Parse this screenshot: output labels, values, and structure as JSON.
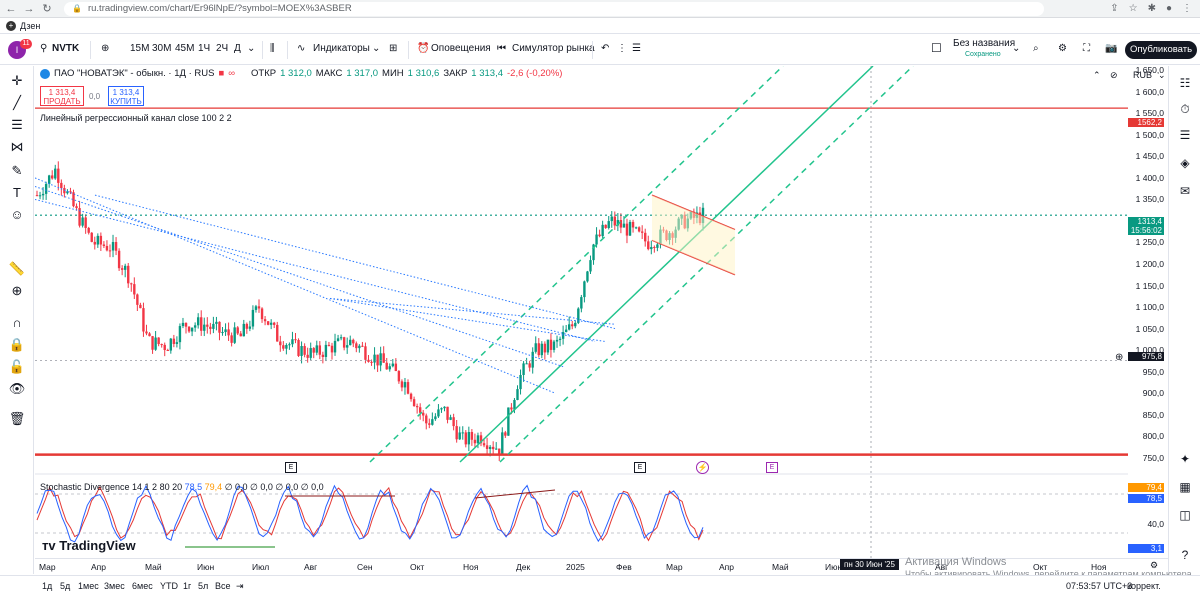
{
  "browser": {
    "url": "ru.tradingview.com/chart/Er96lNpE/?symbol=MOEX%3ASBER",
    "bookmark_label": "Дзен"
  },
  "toolbar": {
    "avatar_badge": "11",
    "symbol": "NVTK",
    "intervals": [
      "15М",
      "30М",
      "45М",
      "1Ч",
      "2Ч",
      "Д"
    ],
    "indicators_label": "Индикаторы",
    "alerts_label": "Оповещения",
    "simulator_label": "Симулятор рынка",
    "layout_name": "Без названия",
    "layout_status": "Сохранено",
    "publish_label": "Опубликовать"
  },
  "legend": {
    "title": "ПАО \"НОВАТЭК\" - обыкн. · 1Д · RUS",
    "open_key": "ОТКР",
    "open_val": "1 312,0",
    "high_key": "МАКС",
    "high_val": "1 317,0",
    "low_key": "МИН",
    "low_val": "1 310,6",
    "close_key": "ЗАКР",
    "close_val": "1 313,4",
    "change": "-2,6 (-0,20%)",
    "sell_price": "1 313,4",
    "sell_label": "ПРОДАТЬ",
    "spread": "0,0",
    "buy_price": "1 313,4",
    "buy_label": "КУПИТЬ",
    "regression_label": "Линейный регрессионный канал close 100 2 2",
    "stoch_label": "Stochastic Divergence 14 1 2 80 20",
    "stoch_k": "78,5",
    "stoch_d": "79,4",
    "stoch_rest": "∅ 0,0 ∅ 0,0 ∅ 0,0 ∅ 0,0"
  },
  "price_axis": {
    "currency": "RUB",
    "ticks": [
      "1 650,0",
      "1 600,0",
      "1 550,0",
      "1 500,0",
      "1 450,0",
      "1 400,0",
      "1 350,0",
      "1 300,0",
      "1 250,0",
      "1 200,0",
      "1 150,0",
      "1 100,0",
      "1 050,0",
      "1 000,0",
      "950,0",
      "900,0",
      "850,0",
      "800,0",
      "750,0"
    ],
    "tag_resistance": "1562,2",
    "tag_last": "1313,4",
    "tag_countdown": "15:56:02",
    "tag_cross": "975,8",
    "osc_ticks": [
      "40,0"
    ],
    "osc_tag_d": "79,4",
    "osc_tag_k": "78,5",
    "osc_tag_low": "3,1"
  },
  "time_axis": {
    "labels": [
      "Мар",
      "Апр",
      "Май",
      "Июн",
      "Июл",
      "Авг",
      "Сен",
      "Окт",
      "Ноя",
      "Дек",
      "2025",
      "Фев",
      "Мар",
      "Апр",
      "Май",
      "Июн",
      "Авг",
      "Окт",
      "Ноя"
    ],
    "crosshair": "пн 30 Июн '25"
  },
  "bottom_bar": {
    "ranges": [
      "1д",
      "5д",
      "1мес",
      "3мес",
      "6мес",
      "YTD",
      "1г",
      "5л",
      "Все"
    ],
    "clock": "07:53:57 UTC+3",
    "correction": "коррект."
  },
  "watermark": {
    "logo": "TradingView",
    "windows_line1": "Активация Windows",
    "windows_line2": "Чтобы активировать Windows, перейдите к параметрам компьютера."
  },
  "colors": {
    "up": "#089981",
    "down": "#f23645",
    "channel": "#22c48d",
    "level": "#e53935",
    "stoch_k": "#2962ff",
    "stoch_d": "#ff9800"
  },
  "chart_data": {
    "type": "candlestick",
    "title": "ПАО \"НОВАТЭК\" - обыкн. · 1Д · RUS",
    "ylim": [
      740,
      1660
    ],
    "months": [
      "Мар",
      "Апр",
      "Май",
      "Июн",
      "Июл",
      "Авг",
      "Сен",
      "Окт",
      "Ноя",
      "Дек",
      "2025",
      "Фев",
      "Мар",
      "Апр",
      "Май",
      "Июн"
    ],
    "close_path": [
      1360,
      1420,
      1330,
      1250,
      1240,
      1170,
      1020,
      1010,
      1060,
      1060,
      1040,
      1030,
      1100,
      1030,
      1005,
      990,
      1010,
      1020,
      990,
      960,
      920,
      830,
      860,
      790,
      800,
      770,
      930,
      1000,
      1010,
      1060,
      1240,
      1300,
      1280,
      1250,
      1270,
      1300,
      1313.4
    ],
    "horizontal_levels": [
      1562.2,
      757
    ],
    "last_price": 1313.4,
    "stochastic": {
      "k": 78.5,
      "d": 79.4,
      "upper": 80,
      "lower": 20
    }
  }
}
